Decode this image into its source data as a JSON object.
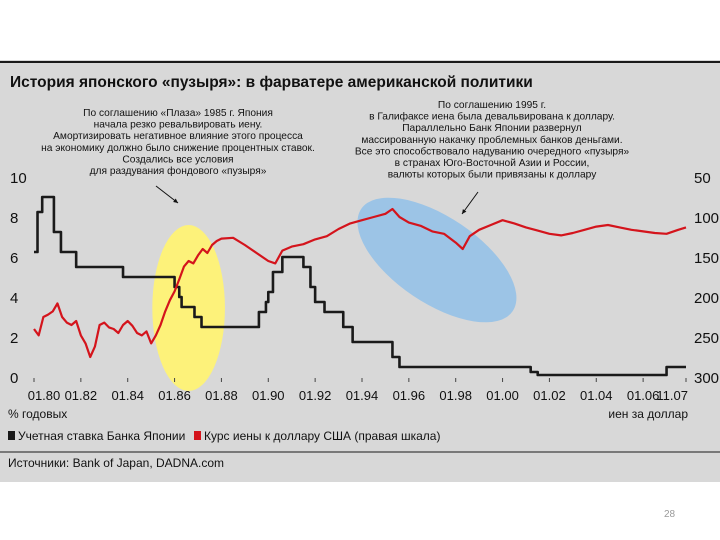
{
  "page_number": "28",
  "chart_data": {
    "type": "line",
    "title": "История японского «пузыря»: в фарватере американской политики",
    "left_axis_label": "% годовых",
    "right_axis_label": "иен за доллар",
    "left_ticks": [
      "10",
      "8",
      "6",
      "4",
      "2",
      "0"
    ],
    "left_tick_values": [
      10,
      8,
      6,
      4,
      2,
      0
    ],
    "right_ticks": [
      "50",
      "100",
      "150",
      "200",
      "250",
      "300"
    ],
    "right_tick_values": [
      50,
      100,
      150,
      200,
      250,
      300
    ],
    "x_ticks": [
      "01.80",
      "01.82",
      "01.84",
      "01.86",
      "01.88",
      "01.90",
      "01.92",
      "01.94",
      "01.96",
      "01.98",
      "01.00",
      "01.02",
      "01.04",
      "01.06",
      "11.07"
    ],
    "x_tick_values": [
      1980,
      1982,
      1984,
      1986,
      1988,
      1990,
      1992,
      1994,
      1996,
      1998,
      2000,
      2002,
      2004,
      2006,
      2007.83
    ],
    "xlim": [
      1980,
      2007.83
    ],
    "ylim_left": [
      0,
      10
    ],
    "ylim_right": [
      300,
      50
    ],
    "annotations": [
      {
        "name": "annotation-plaza",
        "lines": [
          "По соглашению «Плаза» 1985 г. Япония",
          "начала резко ревальвировать иену.",
          "Амортизировать негативное влияние этого процесса",
          "на экономику должно было снижение процентных ставок.",
          "Создались все условия",
          "для раздувания фондового «пузыря»"
        ]
      },
      {
        "name": "annotation-halifax",
        "lines": [
          "По соглашению 1995 г.",
          "в Галифаксе иена была девальвирована к доллару.",
          "Параллельно Банк Японии развернул",
          "массированную накачку проблемных банков деньгами.",
          "Все это способствовало надуванию очередного «пузыря»",
          "в странах Юго-Восточной Азии и России,",
          "валюты которых были привязаны к доллару"
        ]
      }
    ],
    "highlights": [
      {
        "name": "highlight-plaza",
        "color": "#fdf27a",
        "x_center": 1986.6,
        "y_center_left": 3.45,
        "x_halfwidth": 1.55,
        "y_halfheight_left": 4.15,
        "rotation": 0
      },
      {
        "name": "highlight-halifax",
        "color": "#9cc4e6",
        "x_center": 1997.2,
        "y_center_left": 5.85,
        "x_halfwidth": 3.9,
        "y_halfheight_left": 2.15,
        "rotation": 34
      }
    ],
    "series": [
      {
        "name": "Учетная ставка Банка Японии",
        "axis": "left",
        "color": "#1a1a1a",
        "shape": "step",
        "x": [
          1980.0,
          1980.15,
          1980.35,
          1980.85,
          1981.15,
          1981.5,
          1981.8,
          1982.5,
          1983.8,
          1986.0,
          1986.2,
          1986.3,
          1986.85,
          1987.15,
          1989.4,
          1989.6,
          1989.9,
          1990.0,
          1990.2,
          1990.6,
          1991.0,
          1991.5,
          1991.8,
          1992.0,
          1992.4,
          1993.2,
          1993.6,
          1995.3,
          1995.6,
          2000.5,
          2001.2,
          2001.5,
          2006.4,
          2007.0,
          2007.83
        ],
        "y": [
          6.25,
          8.25,
          9.0,
          7.25,
          6.25,
          6.25,
          5.5,
          5.5,
          5.0,
          4.5,
          4.0,
          3.5,
          3.0,
          2.5,
          2.5,
          3.25,
          3.75,
          4.25,
          5.25,
          6.0,
          6.0,
          5.5,
          4.5,
          3.75,
          3.25,
          2.5,
          1.75,
          1.0,
          0.5,
          0.5,
          0.25,
          0.1,
          0.1,
          0.5,
          0.5
        ]
      },
      {
        "name": "Курс иены к доллару США (правая шкала)",
        "axis": "right",
        "color": "#d4141c",
        "shape": "line",
        "x": [
          1980.0,
          1980.2,
          1980.4,
          1980.6,
          1980.8,
          1981.0,
          1981.2,
          1981.4,
          1981.6,
          1981.8,
          1982.0,
          1982.2,
          1982.4,
          1982.6,
          1982.8,
          1983.0,
          1983.2,
          1983.4,
          1983.6,
          1983.8,
          1984.0,
          1984.2,
          1984.4,
          1984.6,
          1984.8,
          1985.0,
          1985.2,
          1985.4,
          1985.6,
          1985.8,
          1986.0,
          1986.2,
          1986.4,
          1986.6,
          1986.8,
          1987.0,
          1987.2,
          1987.4,
          1987.6,
          1987.8,
          1988.0,
          1988.5,
          1989.0,
          1989.5,
          1990.0,
          1990.3,
          1990.6,
          1991.0,
          1991.5,
          1992.0,
          1992.5,
          1993.0,
          1993.5,
          1994.0,
          1994.5,
          1995.0,
          1995.3,
          1995.6,
          1996.0,
          1996.5,
          1997.0,
          1997.5,
          1998.0,
          1998.3,
          1998.6,
          1999.0,
          1999.5,
          2000.0,
          2000.5,
          2001.0,
          2001.5,
          2002.0,
          2002.5,
          2003.0,
          2003.5,
          2004.0,
          2004.5,
          2005.0,
          2005.5,
          2006.0,
          2006.5,
          2007.0,
          2007.5,
          2007.83
        ],
        "y": [
          240,
          248,
          225,
          222,
          218,
          208,
          225,
          232,
          235,
          230,
          248,
          258,
          275,
          262,
          235,
          232,
          238,
          240,
          245,
          235,
          230,
          236,
          245,
          248,
          243,
          258,
          248,
          235,
          218,
          204,
          193,
          178,
          162,
          155,
          158,
          148,
          140,
          145,
          135,
          130,
          127,
          126,
          135,
          145,
          155,
          158,
          142,
          137,
          134,
          128,
          124,
          115,
          108,
          104,
          100,
          96,
          90,
          100,
          107,
          111,
          118,
          121,
          132,
          140,
          124,
          116,
          110,
          104,
          108,
          113,
          117,
          121,
          123,
          120,
          116,
          112,
          110,
          113,
          116,
          118,
          120,
          121,
          116,
          113
        ]
      }
    ],
    "legend": [
      {
        "label": "Учетная ставка Банка Японии",
        "color": "#1a1a1a"
      },
      {
        "label": "Курс иены к доллару США (правая шкала)",
        "color": "#d4141c"
      }
    ],
    "source": "Источники: Bank of Japan, DADNA.com"
  }
}
